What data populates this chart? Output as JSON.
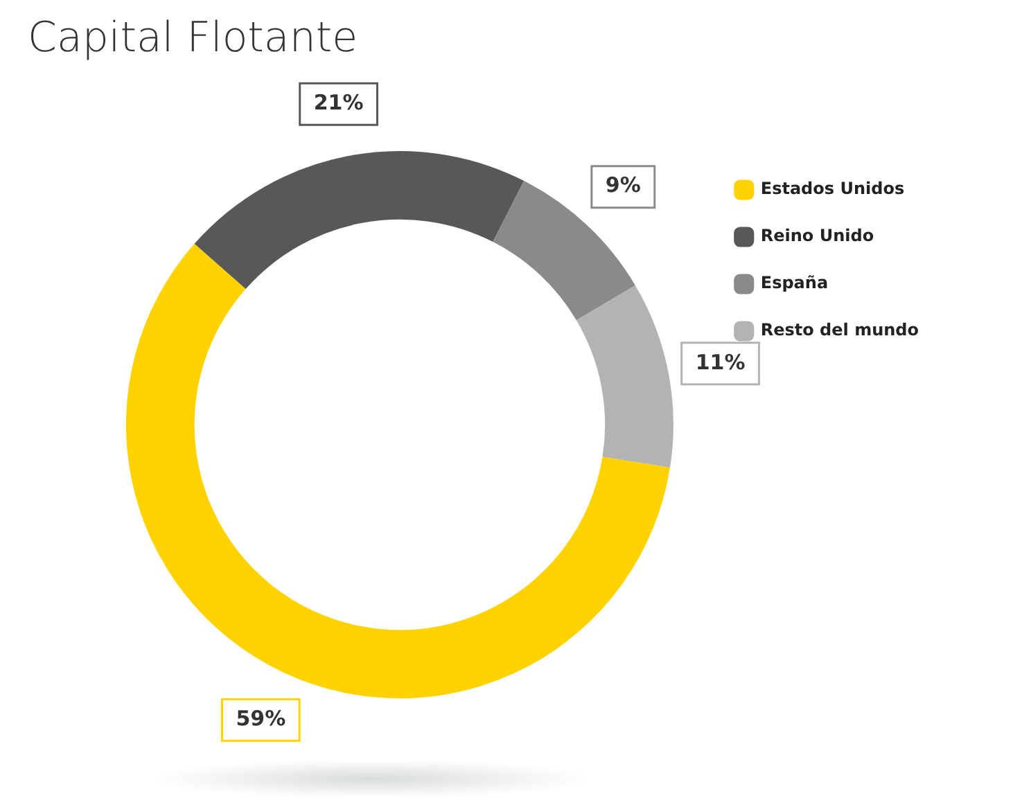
{
  "chart_data": {
    "type": "donut",
    "title": "Capital Flotante",
    "categories": [
      "Estados Unidos",
      "Reino Unido",
      "España",
      "Resto del mundo"
    ],
    "values": [
      59,
      21,
      9,
      11
    ],
    "colors": [
      "#ffd200",
      "#58585a",
      "#8a8a8a",
      "#b3b3b3"
    ],
    "value_labels": [
      "59%",
      "21%",
      "9%",
      "11%"
    ],
    "legend": "top right"
  }
}
